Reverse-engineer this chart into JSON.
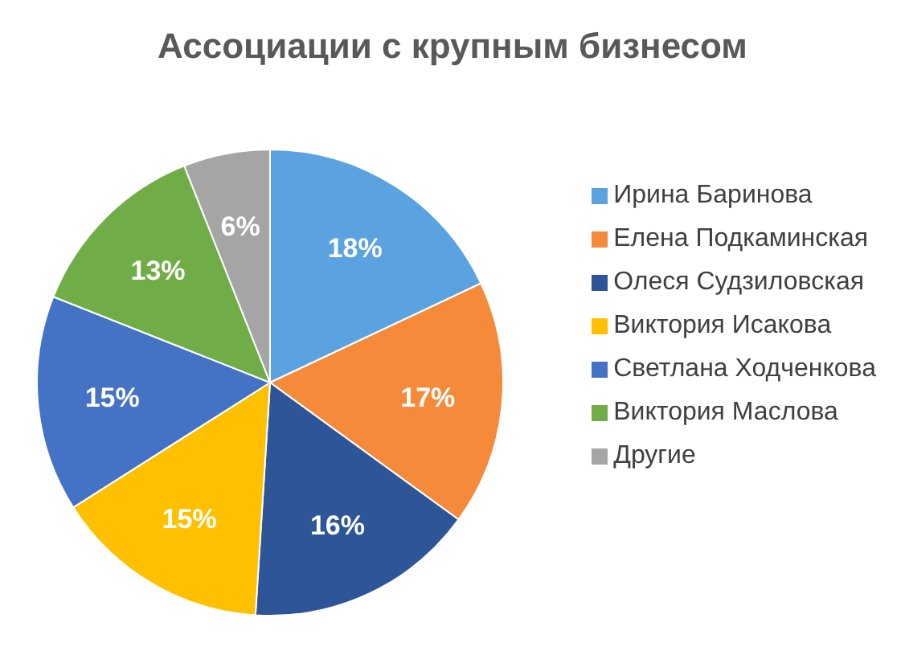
{
  "chart_data": {
    "type": "pie",
    "title": "Ассоциации с крупным бизнесом",
    "categories": [
      "Ирина Баринова",
      "Елена Подкаминская",
      "Олеся Судзиловская",
      "Виктория Исакова",
      "Светлана Ходченкова",
      "Виктория Маслова",
      "Другие"
    ],
    "values": [
      18,
      17,
      16,
      15,
      15,
      13,
      6
    ],
    "colors": [
      "#5ba3e0",
      "#f58a3a",
      "#2e5597",
      "#ffc000",
      "#4472c4",
      "#70ad47",
      "#a5a5a5"
    ],
    "value_labels": [
      "18%",
      "17%",
      "16%",
      "15%",
      "15%",
      "13%",
      "6%"
    ],
    "legend": "right"
  }
}
